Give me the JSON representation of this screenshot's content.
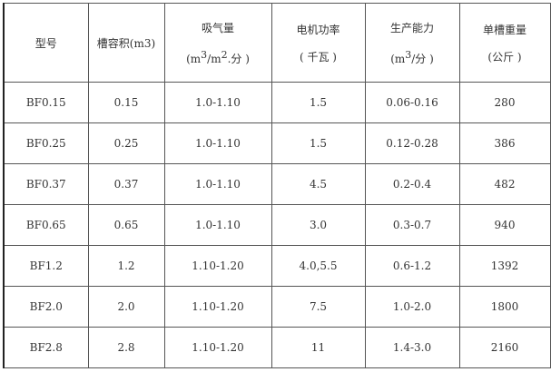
{
  "headers": [
    {
      "title": "型号",
      "unit": ""
    },
    {
      "title": "槽容积(m3)",
      "unit": ""
    },
    {
      "title": "吸气量",
      "unit_parts": [
        "(m",
        "3",
        "/m",
        "2",
        ".分 )"
      ]
    },
    {
      "title": "电机功率",
      "unit": "( 千瓦 )"
    },
    {
      "title": "生产能力",
      "unit_parts": [
        "(m",
        "3",
        "/分 )"
      ]
    },
    {
      "title": "单槽重量",
      "unit": "(公斤 )"
    }
  ],
  "rows": [
    [
      "BF0.15",
      "0.15",
      "1.0-1.10",
      "1.5",
      "0.06-0.16",
      "280"
    ],
    [
      "BF0.25",
      "0.25",
      "1.0-1.10",
      "1.5",
      "0.12-0.28",
      "386"
    ],
    [
      "BF0.37",
      "0.37",
      "1.0-1.10",
      "4.5",
      "0.2-0.4",
      "482"
    ],
    [
      "BF0.65",
      "0.65",
      "1.0-1.10",
      "3.0",
      "0.3-0.7",
      "940"
    ],
    [
      "BF1.2",
      "1.2",
      "1.10-1.20",
      "4.0,5.5",
      "0.6-1.2",
      "1392"
    ],
    [
      "BF2.0",
      "2.0",
      "1.10-1.20",
      "7.5",
      "1.0-2.0",
      "1800"
    ],
    [
      "BF2.8",
      "2.8",
      "1.10-1.20",
      "11",
      "1.4-3.0",
      "2160"
    ]
  ]
}
